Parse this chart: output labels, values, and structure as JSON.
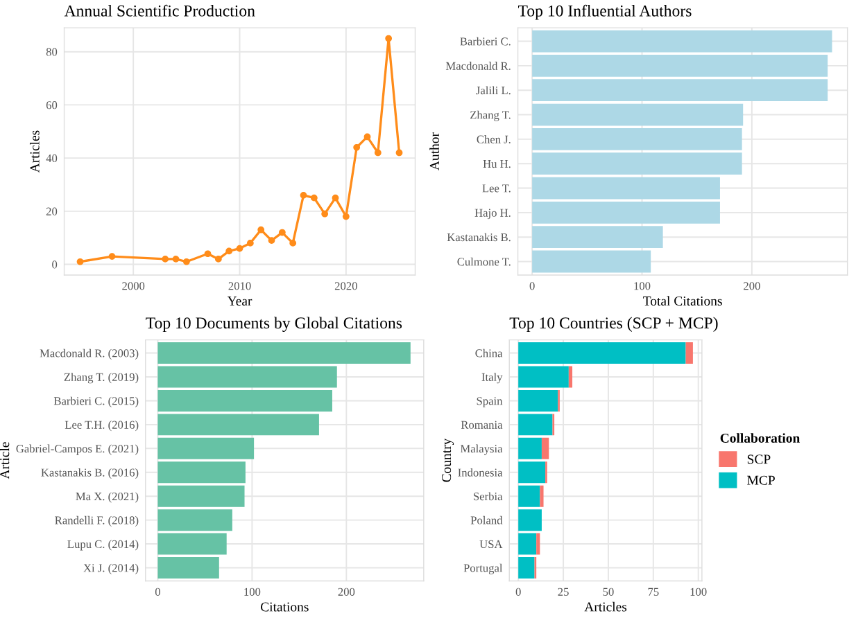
{
  "chart_data": [
    {
      "type": "line",
      "title": "Annual Scientific Production",
      "xlabel": "Year",
      "ylabel": "Articles",
      "x": [
        1995,
        1998,
        2003,
        2004,
        2005,
        2007,
        2008,
        2009,
        2010,
        2011,
        2012,
        2013,
        2014,
        2015,
        2016,
        2017,
        2018,
        2019,
        2020,
        2021,
        2022,
        2023,
        2024,
        2025
      ],
      "series": [
        {
          "color": "#ff8c1a",
          "values": [
            1,
            3,
            2,
            2,
            1,
            4,
            2,
            5,
            6,
            8,
            13,
            9,
            12,
            8,
            26,
            25,
            19,
            25,
            18,
            44,
            48,
            42,
            85,
            42
          ]
        }
      ],
      "xlim": [
        1993.5,
        2026.5
      ],
      "xticks": [
        2000,
        2010,
        2020
      ],
      "ylim": [
        -4,
        89
      ],
      "yticks": [
        0,
        20,
        40,
        60,
        80
      ],
      "grid": true,
      "marker": "circle",
      "line_style": "solid"
    },
    {
      "type": "bar",
      "orientation": "horizontal",
      "title": "Top 10 Influential Authors",
      "xlabel": "Total Citations",
      "ylabel": "Author",
      "categories": [
        "Barbieri C.",
        "Macdonald R.",
        "Jalili L.",
        "Zhang T.",
        "Chen J.",
        "Hu H.",
        "Lee T.",
        "Hajo H.",
        "Kastanakis B.",
        "Culmone T."
      ],
      "series": [
        {
          "color": "#add8e6",
          "values": [
            273,
            269,
            269,
            192,
            191,
            191,
            171,
            171,
            119,
            108
          ]
        }
      ],
      "xlim": [
        -13,
        287
      ],
      "xticks": [
        0,
        100,
        200
      ],
      "grid": true
    },
    {
      "type": "bar",
      "orientation": "horizontal",
      "title": "Top 10 Documents by Global Citations",
      "xlabel": "Citations",
      "ylabel": "Article",
      "categories": [
        "Macdonald R. (2003)",
        "Zhang T. (2019)",
        "Barbieri C. (2015)",
        "Lee T.H. (2016)",
        "Gabriel-Campos E. (2021)",
        "Kastanakis B. (2016)",
        "Ma X. (2021)",
        "Randelli F. (2018)",
        "Lupu C. (2014)",
        "Xi J. (2014)"
      ],
      "series": [
        {
          "color": "#66c2a5",
          "values": [
            268,
            190,
            185,
            171,
            102,
            93,
            92,
            79,
            73,
            65
          ]
        }
      ],
      "xlim": [
        -13,
        282
      ],
      "xticks": [
        0,
        100,
        200
      ],
      "grid": true
    },
    {
      "type": "bar",
      "orientation": "horizontal",
      "stacked": true,
      "title": "Top 10 Countries (SCP + MCP)",
      "xlabel": "Articles",
      "ylabel": "Country",
      "legend_title": "Collaboration",
      "legend": "right",
      "categories": [
        "China",
        "Italy",
        "Spain",
        "Romania",
        "Malaysia",
        "Indonesia",
        "Serbia",
        "Poland",
        "USA",
        "Portugal"
      ],
      "series": [
        {
          "name": "MCP",
          "color": "#00bfc4",
          "values": [
            93,
            28,
            22,
            19,
            13,
            15,
            12,
            13,
            10,
            9
          ]
        },
        {
          "name": "SCP",
          "color": "#f8766d",
          "values": [
            4,
            2,
            1,
            1,
            4,
            1,
            2,
            0,
            2,
            1
          ]
        }
      ],
      "xlim": [
        -5,
        102
      ],
      "xticks": [
        0,
        25,
        50,
        75,
        100
      ],
      "grid": true
    }
  ]
}
